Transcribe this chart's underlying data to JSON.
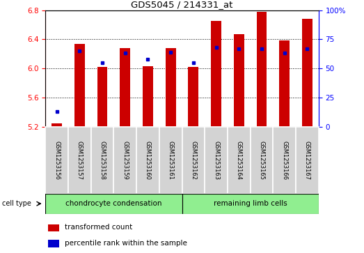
{
  "title": "GDS5045 / 214331_at",
  "samples": [
    "GSM1253156",
    "GSM1253157",
    "GSM1253158",
    "GSM1253159",
    "GSM1253160",
    "GSM1253161",
    "GSM1253162",
    "GSM1253163",
    "GSM1253164",
    "GSM1253165",
    "GSM1253166",
    "GSM1253167"
  ],
  "transformed_count": [
    5.24,
    6.34,
    6.02,
    6.28,
    6.03,
    6.28,
    6.02,
    6.65,
    6.47,
    6.78,
    6.38,
    6.68
  ],
  "percentile_rank": [
    13,
    65,
    55,
    63,
    58,
    64,
    55,
    68,
    67,
    67,
    63,
    67
  ],
  "ylim_left": [
    5.2,
    6.8
  ],
  "ylim_right": [
    0,
    100
  ],
  "yticks_left": [
    5.2,
    5.6,
    6.0,
    6.4,
    6.8
  ],
  "yticks_right": [
    0,
    25,
    50,
    75,
    100
  ],
  "bar_color": "#cc0000",
  "point_color": "#0000cc",
  "bar_width": 0.45,
  "base_value": 5.2,
  "group1_label": "chondrocyte condensation",
  "group2_label": "remaining limb cells",
  "group1_count": 6,
  "group2_count": 6,
  "cell_type_label": "cell type",
  "legend_bar_label": "transformed count",
  "legend_point_label": "percentile rank within the sample",
  "group_color": "#90ee90",
  "tick_bg_color": "#d3d3d3",
  "fig_width": 5.23,
  "fig_height": 3.63,
  "dpi": 100
}
